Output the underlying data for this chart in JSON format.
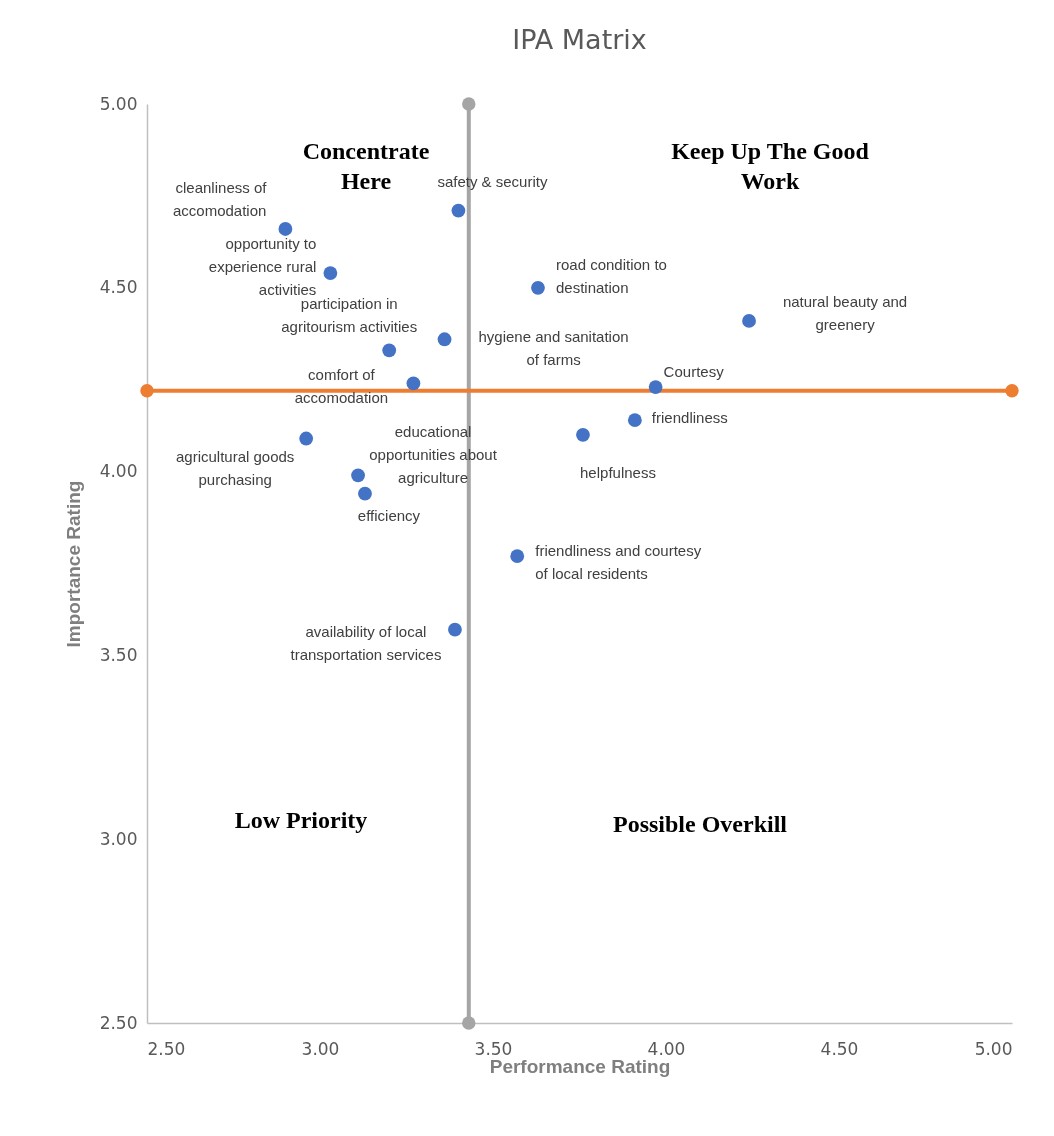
{
  "chart_data": {
    "type": "scatter",
    "title": "IPA Matrix",
    "xlabel": "Performance Rating",
    "ylabel": "Importance Rating",
    "marker": "circle",
    "series": [
      {
        "color": "#4472c4",
        "x": [
          2.9,
          3.03,
          3.4,
          3.63,
          4.24,
          3.2,
          3.36,
          3.27,
          3.97,
          3.91,
          3.76,
          2.96,
          3.11,
          3.13,
          3.57,
          3.39
        ],
        "values": [
          4.66,
          4.54,
          4.71,
          4.5,
          4.41,
          4.33,
          4.36,
          4.24,
          4.23,
          4.14,
          4.1,
          4.09,
          3.99,
          3.94,
          3.77,
          3.57
        ],
        "value_labels": [
          "cleanliness of accomodation",
          "opportunity to experience rural activities",
          "safety & security",
          "road condition to destination",
          "natural beauty and greenery",
          "participation in agritourism activities",
          "hygiene and sanitation of farms",
          "comfort of accomodation",
          "Courtesy",
          "friendliness",
          "helpfulness",
          "agricultural goods purchasing",
          "educational opportunities about agriculture",
          "efficiency",
          "friendliness and courtesy of local residents",
          "availability of local transportation services"
        ]
      },
      {
        "type": "line",
        "color": "#a5a5a5",
        "x": [
          3.43,
          3.43
        ],
        "values": [
          2.5,
          5
        ]
      },
      {
        "type": "line",
        "color": "#ed7d31",
        "x": [
          2.5,
          5
        ],
        "values": [
          4.22,
          4.22
        ]
      }
    ],
    "xlim": [
      2.5,
      5
    ],
    "ylim": [
      2.5,
      5
    ],
    "xticks": [
      {
        "value": 2.5,
        "label": "2.50"
      },
      {
        "value": 3,
        "label": "3.00"
      },
      {
        "value": 3.5,
        "label": "3.50"
      },
      {
        "value": 4,
        "label": "4.00"
      },
      {
        "value": 4.5,
        "label": "4.50"
      },
      {
        "value": 5,
        "label": "5.00"
      }
    ],
    "yticks": [
      {
        "value": 2.5,
        "label": "2.50"
      },
      {
        "value": 3,
        "label": "3.00"
      },
      {
        "value": 3.5,
        "label": "3.50"
      },
      {
        "value": 4,
        "label": "4.00"
      },
      {
        "value": 4.5,
        "label": "4.50"
      },
      {
        "value": 5,
        "label": "5.00"
      }
    ],
    "annotations": [
      "Concentrate Here",
      "Keep Up The Good Work",
      "Low Priority",
      "Possible Overkill"
    ]
  }
}
